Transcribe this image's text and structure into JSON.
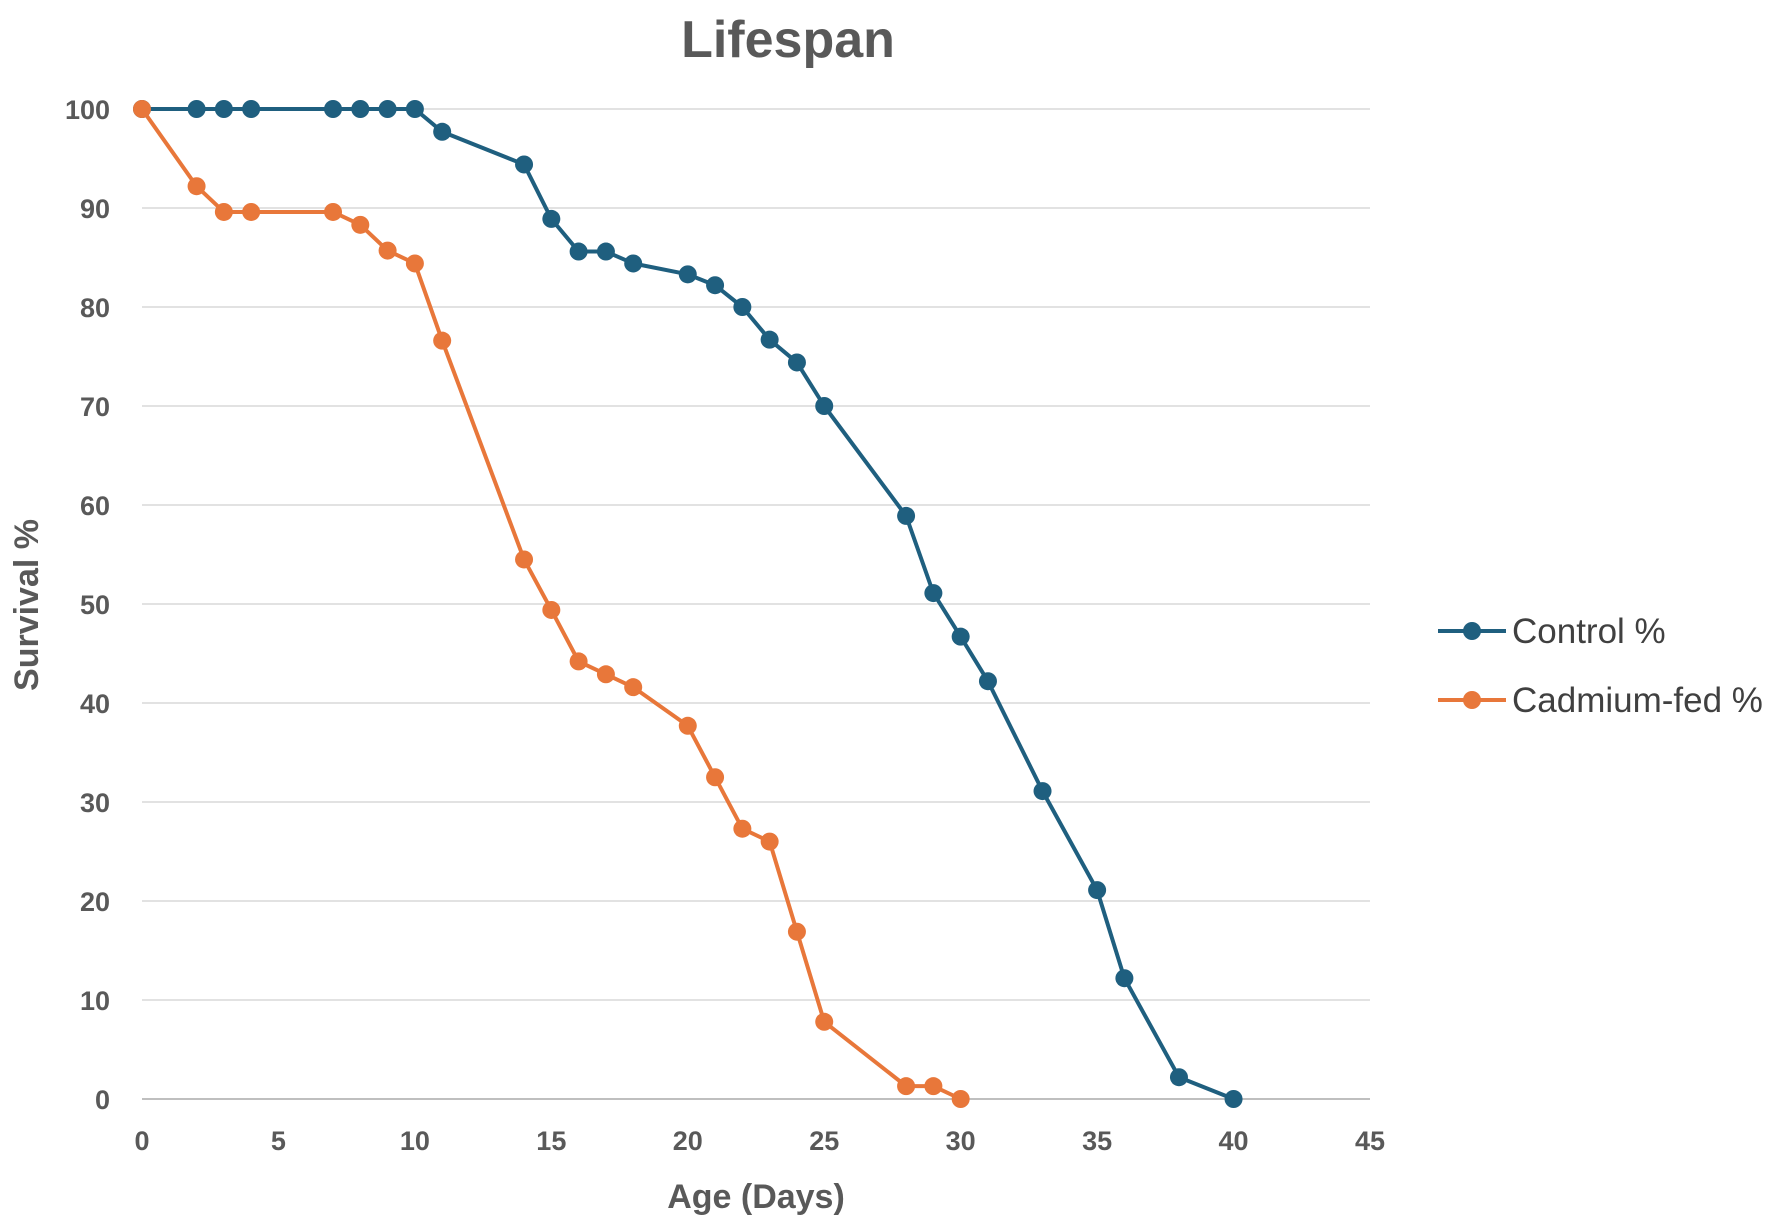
{
  "chart_data": {
    "type": "line",
    "title": "Lifespan",
    "xlabel": "Age (Days)",
    "ylabel": "Survival %",
    "xlim": [
      0,
      45
    ],
    "ylim": [
      0,
      100
    ],
    "xticks": [
      0,
      5,
      10,
      15,
      20,
      25,
      30,
      35,
      40,
      45
    ],
    "yticks": [
      0,
      10,
      20,
      30,
      40,
      50,
      60,
      70,
      80,
      90,
      100
    ],
    "grid": "horizontal",
    "legend_position": "right",
    "series": [
      {
        "name": "Control %",
        "color": "#1f5f7f",
        "x": [
          0,
          2,
          3,
          4,
          7,
          8,
          9,
          10,
          11,
          14,
          15,
          16,
          17,
          18,
          20,
          21,
          22,
          23,
          24,
          25,
          28,
          29,
          30,
          31,
          33,
          35,
          36,
          38,
          40
        ],
        "y": [
          100,
          100,
          100,
          100,
          100,
          100,
          100,
          100,
          97.7,
          94.4,
          88.9,
          85.6,
          85.6,
          84.4,
          83.3,
          82.2,
          80.0,
          76.7,
          74.4,
          70.0,
          58.9,
          51.1,
          46.7,
          42.2,
          31.1,
          21.1,
          12.2,
          2.2,
          0
        ]
      },
      {
        "name": "Cadmium-fed %",
        "color": "#e8773a",
        "x": [
          0,
          2,
          3,
          4,
          7,
          8,
          9,
          10,
          11,
          14,
          15,
          16,
          17,
          18,
          20,
          21,
          22,
          23,
          24,
          25,
          28,
          29,
          30
        ],
        "y": [
          100,
          92.2,
          89.6,
          89.6,
          89.6,
          88.3,
          85.7,
          84.4,
          76.6,
          54.5,
          49.4,
          44.2,
          42.9,
          41.6,
          37.7,
          32.5,
          27.3,
          26.0,
          16.9,
          7.8,
          1.3,
          1.3,
          0
        ]
      }
    ]
  }
}
